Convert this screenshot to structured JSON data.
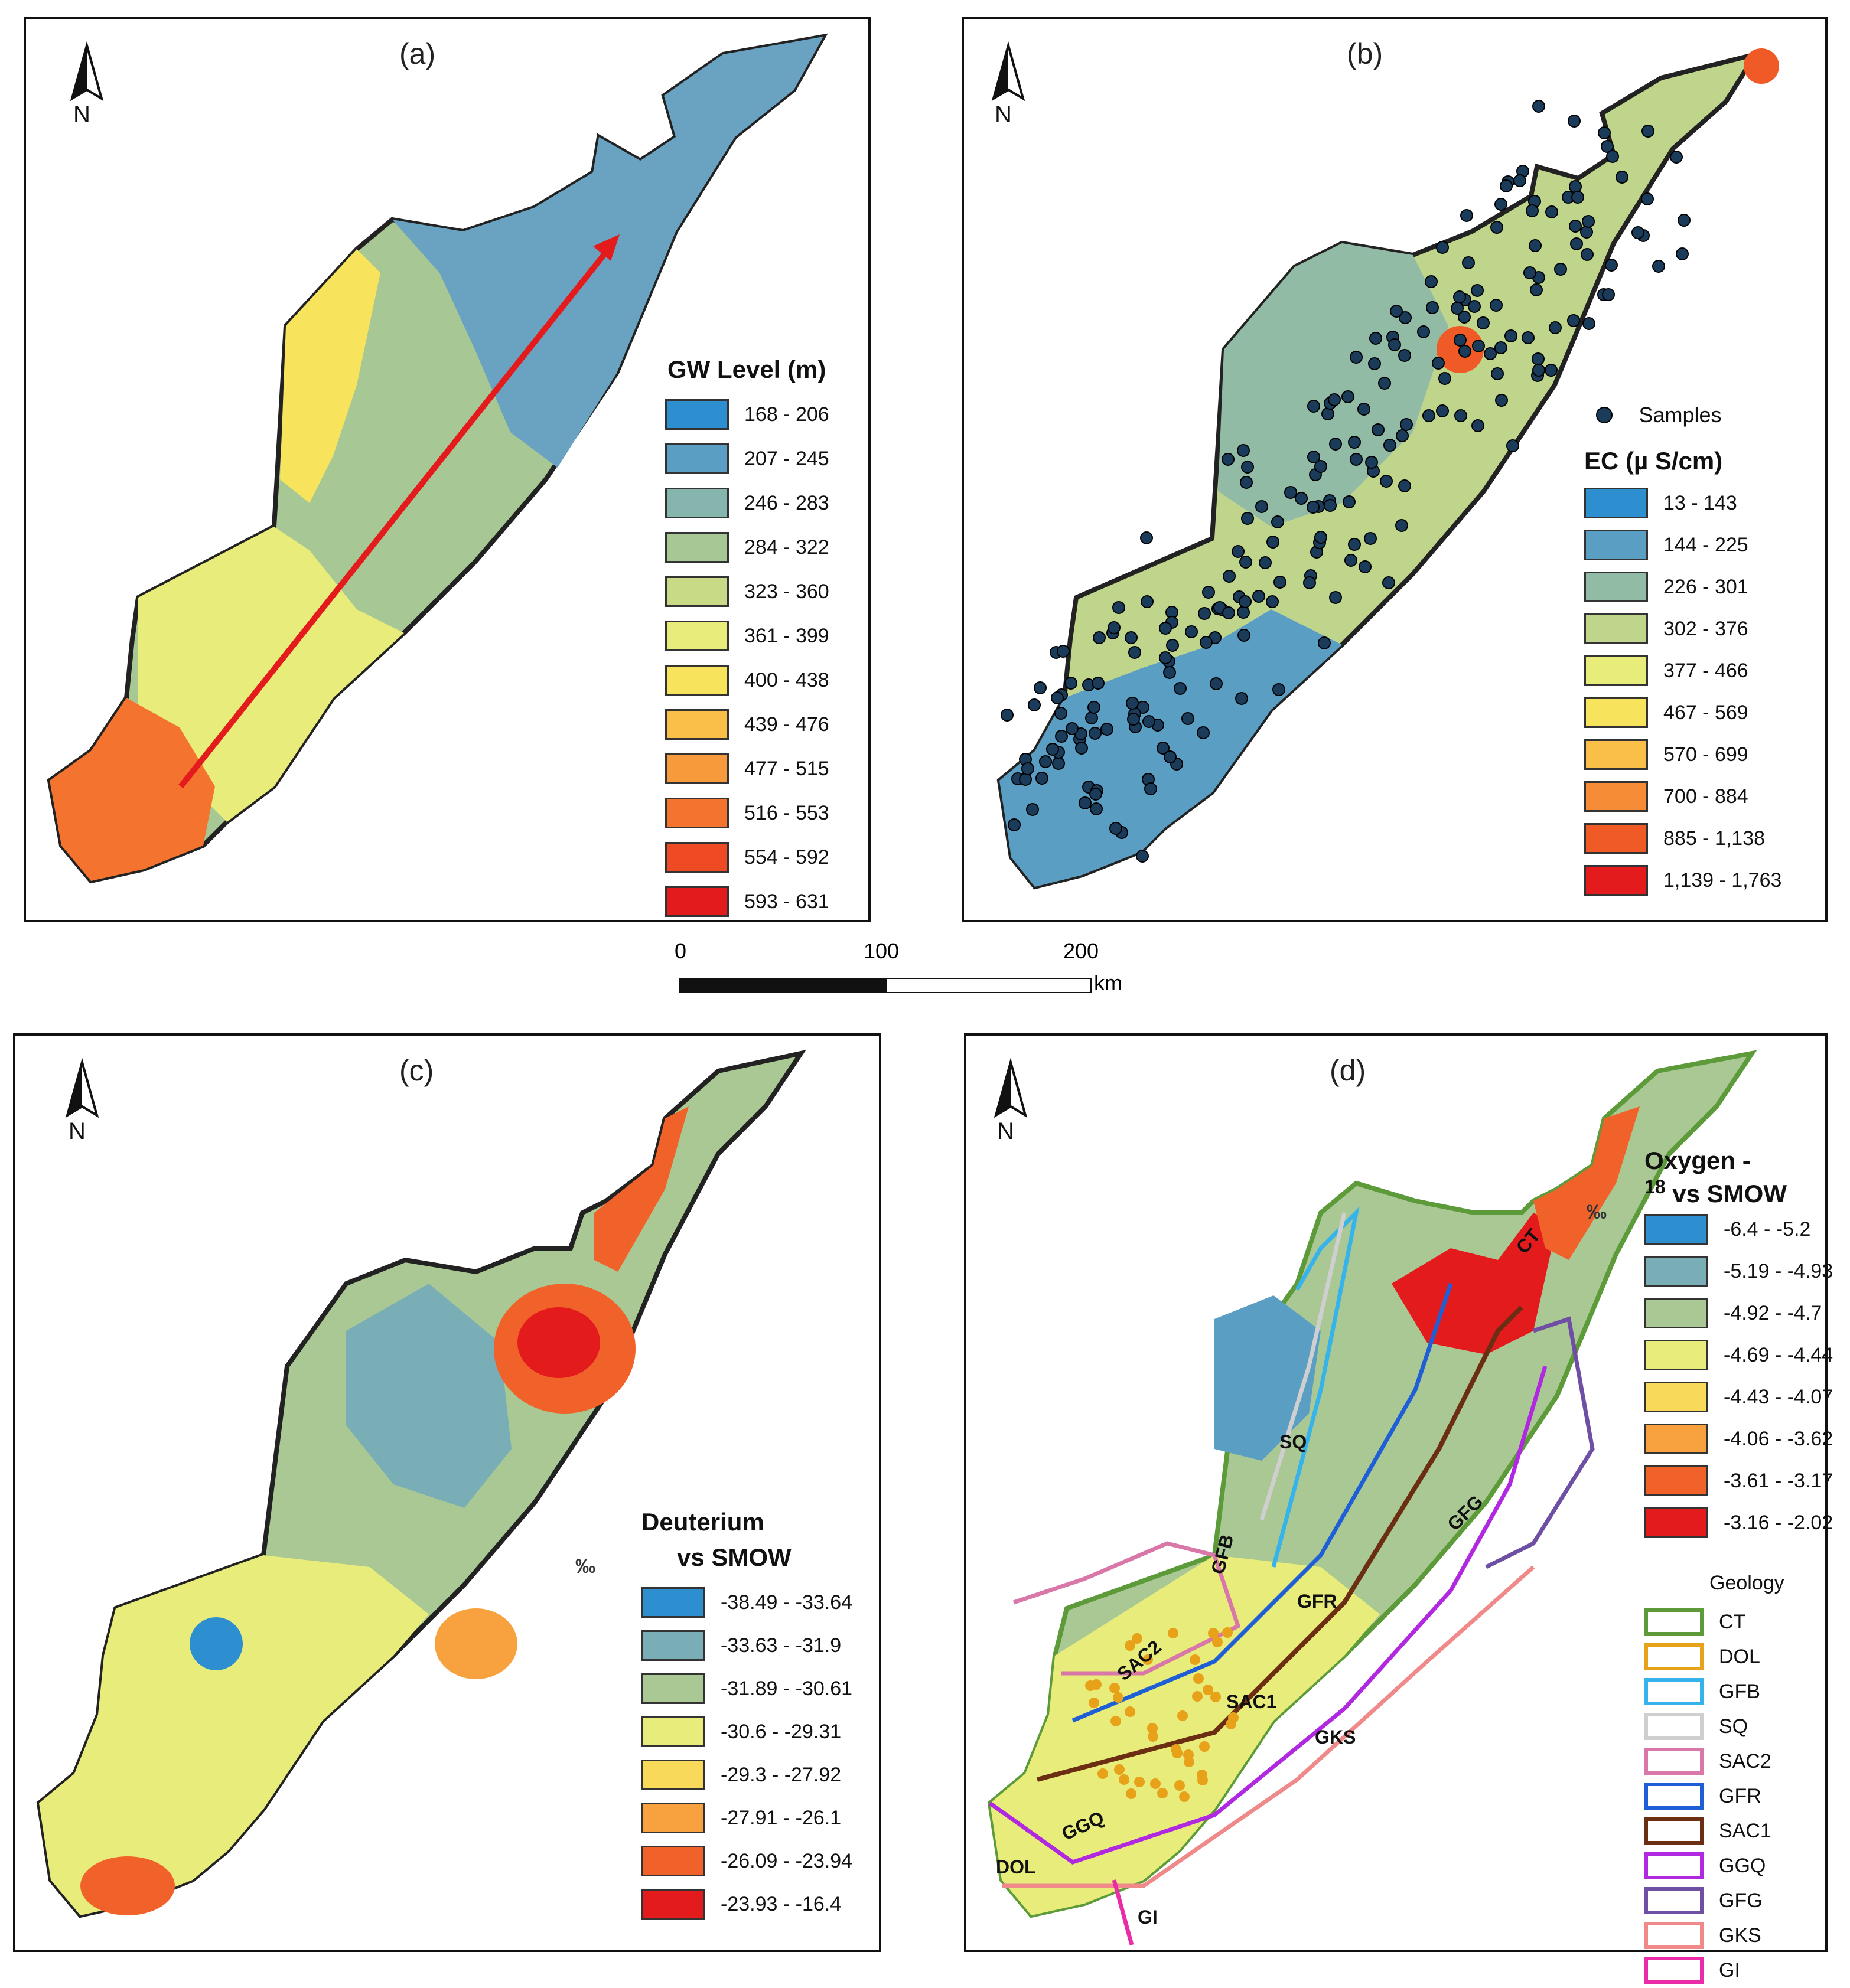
{
  "panel_a": {
    "label": "(a)",
    "north": "N",
    "legend_title": "GW Level (m)",
    "legend": [
      {
        "label": "168 - 206",
        "color": "#2e8fd0"
      },
      {
        "label": "207 - 245",
        "color": "#5a9ec4"
      },
      {
        "label": "246 - 283",
        "color": "#86b5ad"
      },
      {
        "label": "284 - 322",
        "color": "#a7c794"
      },
      {
        "label": "323 - 360",
        "color": "#c9da86"
      },
      {
        "label": "361 - 399",
        "color": "#e8ec7a"
      },
      {
        "label": "400 - 438",
        "color": "#f8e35c"
      },
      {
        "label": "439 - 476",
        "color": "#f9bf48"
      },
      {
        "label": "477 - 515",
        "color": "#f79a3c"
      },
      {
        "label": "516 - 553",
        "color": "#f4732e"
      },
      {
        "label": "554 - 592",
        "color": "#ee4a24"
      },
      {
        "label": "593 - 631",
        "color": "#e41b1c"
      }
    ]
  },
  "panel_b": {
    "label": "(b)",
    "north": "N",
    "samples_label": "Samples",
    "legend_title": "EC (µ S/cm)",
    "legend": [
      {
        "label": "13 - 143",
        "color": "#2e8fd0"
      },
      {
        "label": "144 - 225",
        "color": "#5a9ec4"
      },
      {
        "label": "226 - 301",
        "color": "#92bba6"
      },
      {
        "label": "302 - 376",
        "color": "#c0d58c"
      },
      {
        "label": "377 - 466",
        "color": "#e8ec7a"
      },
      {
        "label": "467 - 569",
        "color": "#f8e35c"
      },
      {
        "label": "570 - 699",
        "color": "#f9bf48"
      },
      {
        "label": "700 - 884",
        "color": "#f78c36"
      },
      {
        "label": "885 - 1,138",
        "color": "#f05a26"
      },
      {
        "label": "1,139 - 1,763",
        "color": "#e41b1c"
      }
    ]
  },
  "scale_bar": {
    "ticks": [
      "0",
      "100",
      "200"
    ],
    "unit": "km"
  },
  "panel_c": {
    "label": "(c)",
    "north": "N",
    "legend_title_1": "Deuterium",
    "legend_title_2": "vs SMOW",
    "permil": "‰",
    "legend": [
      {
        "label": "-38.49 - -33.64",
        "color": "#2e8fd0"
      },
      {
        "label": "-33.63 - -31.9",
        "color": "#7aaeb6"
      },
      {
        "label": "-31.89 - -30.61",
        "color": "#a9c894"
      },
      {
        "label": "-30.6 - -29.31",
        "color": "#e8ec7a"
      },
      {
        "label": "-29.3 - -27.92",
        "color": "#f8d95a"
      },
      {
        "label": "-27.91 - -26.1",
        "color": "#f7a23e"
      },
      {
        "label": "-26.09 - -23.94",
        "color": "#f0622a"
      },
      {
        "label": "-23.93 - -16.4",
        "color": "#e41b1c"
      }
    ]
  },
  "panel_d": {
    "label": "(d)",
    "north": "N",
    "legend_title_1": "Oxygen -",
    "legend_title_sup": "18",
    "legend_title_2": "vs SMOW",
    "permil": "‰",
    "legend": [
      {
        "label": "-6.4 - -5.2",
        "color": "#2e8fd0"
      },
      {
        "label": "-5.19 - -4.93",
        "color": "#7aaeb6"
      },
      {
        "label": "-4.92 - -4.7",
        "color": "#a9c894"
      },
      {
        "label": "-4.69 - -4.44",
        "color": "#e8ec7a"
      },
      {
        "label": "-4.43 - -4.07",
        "color": "#f8d95a"
      },
      {
        "label": "-4.06 - -3.62",
        "color": "#f7a23e"
      },
      {
        "label": "-3.61 - -3.17",
        "color": "#f0622a"
      },
      {
        "label": "-3.16 - -2.02",
        "color": "#e41b1c"
      }
    ],
    "geology_title": "Geology",
    "geology": [
      {
        "label": "CT",
        "color": "#5c9a3a"
      },
      {
        "label": "DOL",
        "color": "#e7a21a"
      },
      {
        "label": "GFB",
        "color": "#35b3ea"
      },
      {
        "label": "SQ",
        "color": "#cfcfcf"
      },
      {
        "label": "SAC2",
        "color": "#d877a8"
      },
      {
        "label": "GFR",
        "color": "#1f5fd6"
      },
      {
        "label": "SAC1",
        "color": "#6b2e12"
      },
      {
        "label": "GGQ",
        "color": "#b028e0"
      },
      {
        "label": "GFG",
        "color": "#6e4fa3"
      },
      {
        "label": "GKS",
        "color": "#f08a8a"
      },
      {
        "label": "GI",
        "color": "#ea2ca8"
      }
    ],
    "map_labels": [
      "CT",
      "SQ",
      "GFB",
      "GFG",
      "GFR",
      "SAC2",
      "SAC1",
      "GKS",
      "GGQ",
      "DOL",
      "GI"
    ]
  }
}
